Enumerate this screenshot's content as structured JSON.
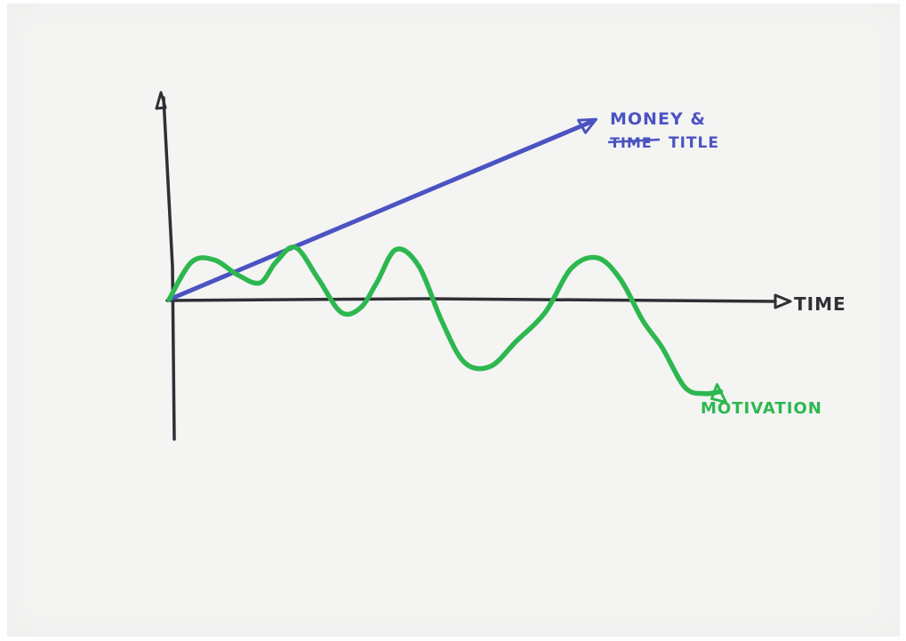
{
  "chart_data": {
    "type": "line",
    "title": "",
    "xlabel": "TIME",
    "ylabel": "",
    "grid": false,
    "legend": "none",
    "xlim": [
      0,
      10
    ],
    "ylim": [
      -6,
      10
    ],
    "series": [
      {
        "name": "MONEY & TITLE",
        "name_struck_word": "TIME",
        "color": "#4b53c2",
        "x": [
          0,
          6.5
        ],
        "y": [
          0,
          8.5
        ]
      },
      {
        "name": "MOTIVATION",
        "color": "#2db84f",
        "x": [
          0,
          0.35,
          0.7,
          1.05,
          1.4,
          1.65,
          1.95,
          2.3,
          2.65,
          2.95,
          3.2,
          3.5,
          3.85,
          4.2,
          4.55,
          4.95,
          5.35,
          5.8,
          6.2,
          6.6,
          6.95,
          7.3,
          7.6,
          7.95,
          8.25,
          8.5
        ],
        "y": [
          0,
          1.8,
          1.9,
          1.2,
          0.8,
          1.8,
          2.5,
          1.0,
          -0.6,
          -0.4,
          0.8,
          2.4,
          1.6,
          -1.0,
          -3.0,
          -3.2,
          -2.0,
          -0.6,
          1.5,
          2.0,
          1.0,
          -1.0,
          -2.3,
          -4.2,
          -4.5,
          -4.4
        ]
      }
    ]
  }
}
